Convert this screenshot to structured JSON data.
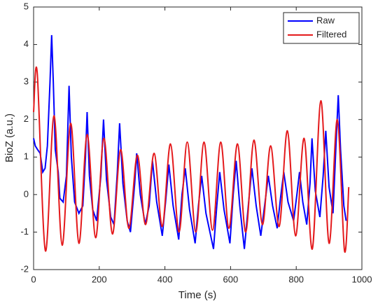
{
  "chart_data": {
    "type": "line",
    "xlabel": "Time (s)",
    "ylabel": "BioZ (a.u.)",
    "xlim": [
      0,
      1000
    ],
    "xticks": [
      0,
      200,
      400,
      600,
      800,
      1000
    ],
    "ylim": [
      -2,
      5
    ],
    "yticks": [
      -2,
      -1,
      0,
      1,
      2,
      3,
      4,
      5
    ],
    "legend": "upper right",
    "grid": false,
    "series": [
      {
        "name": "Raw",
        "color": "#0000ff",
        "x": [
          0,
          5,
          12,
          20,
          28,
          35,
          42,
          50,
          55,
          60,
          66,
          75,
          80,
          90,
          100,
          108,
          115,
          125,
          138,
          150,
          158,
          163,
          170,
          180,
          192,
          205,
          213,
          222,
          235,
          245,
          255,
          262,
          272,
          285,
          295,
          308,
          314,
          325,
          340,
          352,
          362,
          375,
          392,
          402,
          412,
          425,
          442,
          452,
          462,
          475,
          492,
          502,
          512,
          525,
          548,
          558,
          567,
          580,
          598,
          608,
          617,
          628,
          642,
          655,
          665,
          678,
          692,
          705,
          715,
          728,
          742,
          752,
          762,
          775,
          792,
          802,
          810,
          820,
          832,
          842,
          848,
          858,
          872,
          882,
          890,
          900,
          912,
          922,
          928,
          935,
          945,
          952
        ],
        "values": [
          1.5,
          1.3,
          1.2,
          1.1,
          0.6,
          0.7,
          1.3,
          3.0,
          4.25,
          3.0,
          1.2,
          0.6,
          -0.1,
          -0.2,
          0.5,
          2.9,
          1.0,
          -0.2,
          -0.5,
          -0.3,
          1.0,
          2.2,
          0.5,
          -0.4,
          -0.7,
          0.5,
          2.0,
          0.4,
          -0.6,
          -0.8,
          0.6,
          1.9,
          0.3,
          -0.7,
          -1.0,
          0.3,
          1.1,
          0.0,
          -0.8,
          -0.3,
          0.9,
          -0.2,
          -1.1,
          -0.2,
          0.8,
          -0.3,
          -1.2,
          0.0,
          0.7,
          -0.4,
          -1.3,
          -0.3,
          0.5,
          -0.5,
          -1.45,
          -0.3,
          0.6,
          -0.4,
          -1.3,
          0.0,
          0.9,
          -0.3,
          -1.45,
          -0.2,
          0.7,
          -0.3,
          -1.1,
          -0.2,
          0.5,
          -0.3,
          -0.9,
          -0.1,
          0.6,
          -0.2,
          -0.7,
          0.0,
          0.6,
          -0.2,
          -0.8,
          0.3,
          1.5,
          0.1,
          -0.6,
          0.5,
          1.7,
          0.2,
          -0.5,
          1.5,
          2.65,
          1.2,
          -0.3,
          -0.7
        ]
      },
      {
        "name": "Filtered",
        "color": "#e41a1c",
        "x": [
          0,
          11,
          36,
          62,
          87,
          113,
          138,
          163,
          189,
          214,
          240,
          265,
          290,
          316,
          341,
          367,
          392,
          417,
          443,
          468,
          494,
          519,
          545,
          570,
          595,
          621,
          646,
          671,
          697,
          722,
          748,
          773,
          798,
          824,
          849,
          875,
          900,
          925,
          947,
          960
        ],
        "values": [
          2.2,
          3.25,
          -1.5,
          2.1,
          -1.35,
          1.9,
          -1.3,
          1.6,
          -1.15,
          1.5,
          -1.05,
          1.2,
          -0.9,
          1.05,
          -0.8,
          1.1,
          -0.85,
          1.35,
          -1.0,
          1.4,
          -1.0,
          1.4,
          -0.95,
          1.4,
          -0.9,
          1.35,
          -1.0,
          1.45,
          -0.8,
          1.3,
          -0.85,
          1.7,
          -1.1,
          1.5,
          -1.45,
          2.5,
          -1.3,
          2.0,
          -1.5,
          0.2
        ]
      }
    ]
  }
}
